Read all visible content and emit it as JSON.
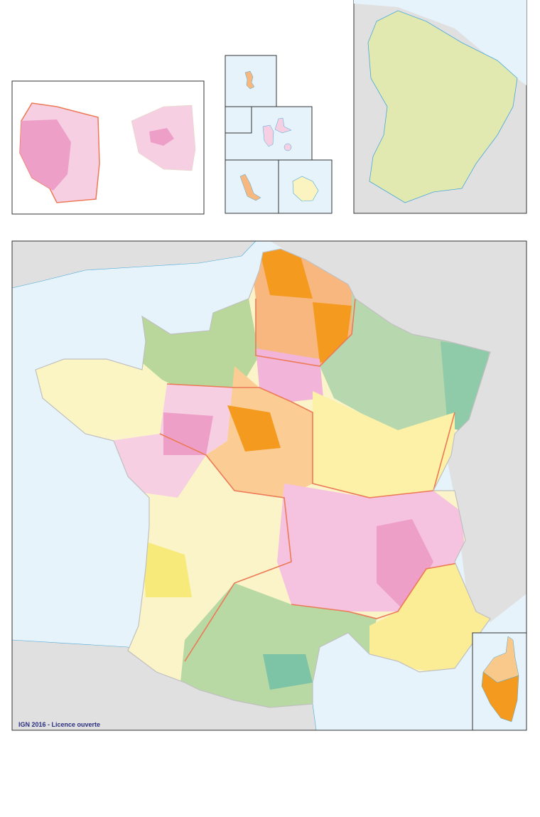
{
  "credit": "IGN 2016 - Licence ouverte",
  "colors": {
    "sea": "#e6f3fb",
    "neighbor_land": "#e0e0e0",
    "region_border": "#ec7a56",
    "coast": "#4aa8d8",
    "frame": "#333333"
  },
  "regions": [
    {
      "key": "hauts-de-france",
      "fill": "#f7b77f"
    },
    {
      "key": "normandie",
      "fill": "#b9d79b"
    },
    {
      "key": "grand-est",
      "fill": "#b7d7ae"
    },
    {
      "key": "bretagne",
      "fill": "#fbf5c4"
    },
    {
      "key": "pays-de-la-loire",
      "fill": "#f6cfe3"
    },
    {
      "key": "ile-de-france",
      "fill": "#f2b4d8"
    },
    {
      "key": "centre-val-de-loire",
      "fill": "#fbcd94"
    },
    {
      "key": "bourgogne-franche-comte",
      "fill": "#fcf1a6"
    },
    {
      "key": "nouvelle-aquitaine",
      "fill": "#fbf4c8"
    },
    {
      "key": "auvergne-rhone-alpes",
      "fill": "#f5c3df"
    },
    {
      "key": "occitanie",
      "fill": "#b8d9a4"
    },
    {
      "key": "provence-alpes-cote-azur",
      "fill": "#fbec96"
    },
    {
      "key": "corse",
      "fill": "#f9c98c"
    }
  ],
  "insets": [
    "ile-de-france",
    "outre-mer",
    "guyane",
    "corse"
  ]
}
